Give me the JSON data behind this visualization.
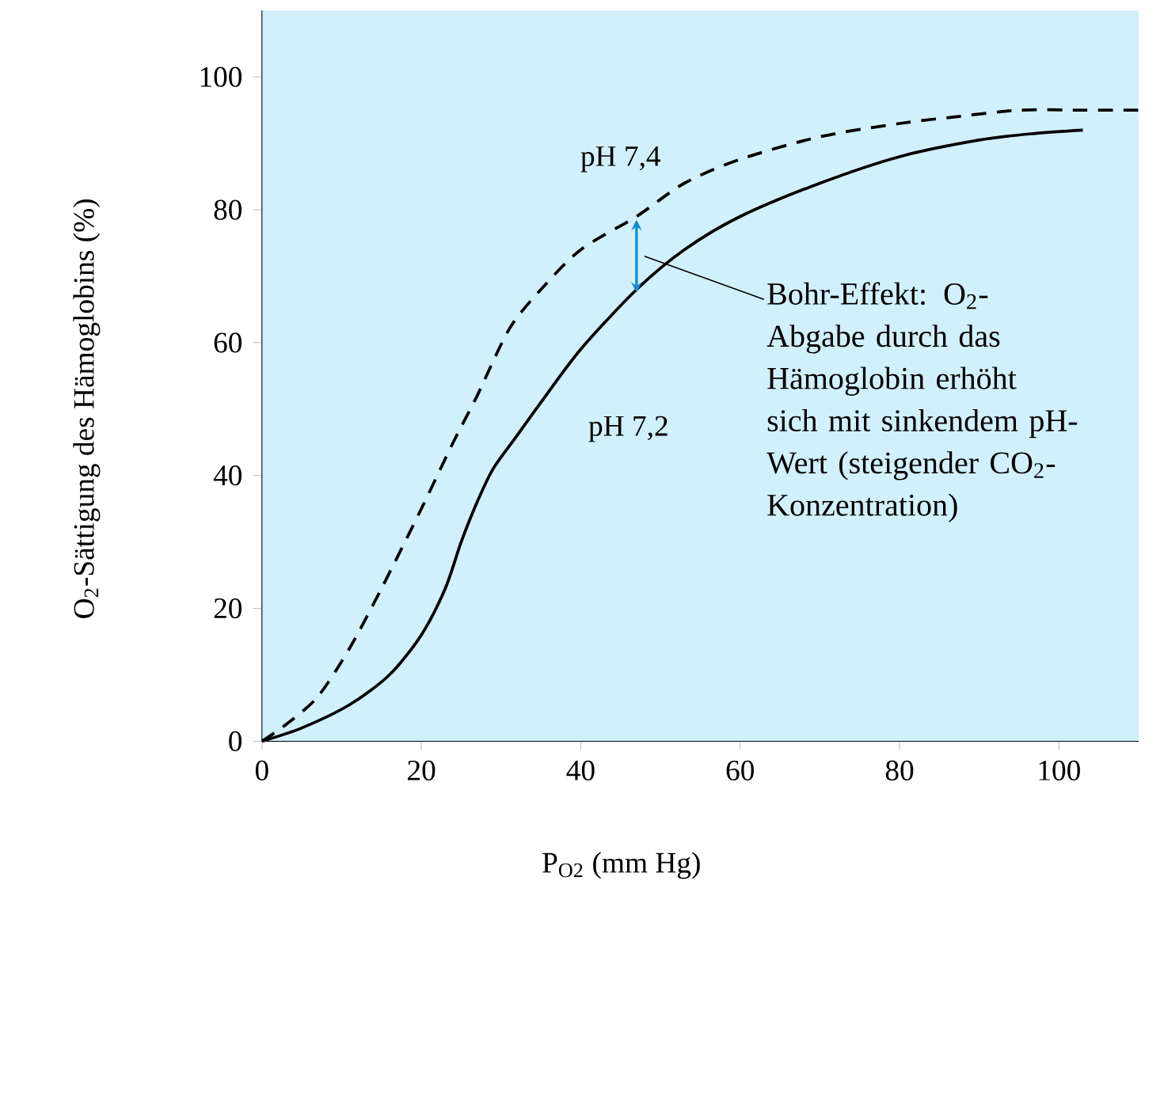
{
  "chart_data": {
    "type": "line",
    "xlabel": "P$_{O2}$ (mm Hg)",
    "ylabel": "O$_{2}$-Sättigung des Hämoglobins (%)",
    "xlim": [
      0,
      110
    ],
    "ylim": [
      0,
      110
    ],
    "xticks": [
      0,
      20,
      40,
      60,
      80,
      100
    ],
    "yticks": [
      0,
      20,
      40,
      60,
      80,
      100
    ],
    "grid": false,
    "legend": false,
    "marker": "none",
    "series": [
      {
        "name": "pH 7,4",
        "color": "#000000",
        "line_style": "dashed",
        "x": [
          0,
          3,
          7,
          11,
          15,
          20,
          24,
          27,
          31,
          35,
          40,
          47,
          53,
          60,
          70,
          80,
          87,
          95,
          103,
          110
        ],
        "values": [
          0,
          2.5,
          6.7,
          14,
          23,
          35,
          45,
          52,
          62,
          68,
          74,
          79,
          84,
          87.6,
          91,
          93,
          94,
          95,
          95,
          95
        ]
      },
      {
        "name": "pH 7,2",
        "color": "#000000",
        "line_style": "solid",
        "x": [
          0,
          5,
          11,
          16,
          20,
          23,
          25,
          27,
          29,
          32,
          35,
          40,
          47,
          53,
          60,
          70,
          80,
          90,
          97,
          103
        ],
        "values": [
          0,
          2,
          5.5,
          10,
          16,
          23,
          30,
          36,
          41,
          46,
          51,
          59,
          68,
          74,
          79,
          84,
          88,
          90.5,
          91.5,
          92
        ]
      }
    ],
    "annotations": [
      "Bohr-Effekt: O$_{2}$-Abgabe durch das Hämoglobin erhöht sich mit sinkendem pH-Wert (steigender CO$_{2}$-Konzentration)"
    ]
  }
}
